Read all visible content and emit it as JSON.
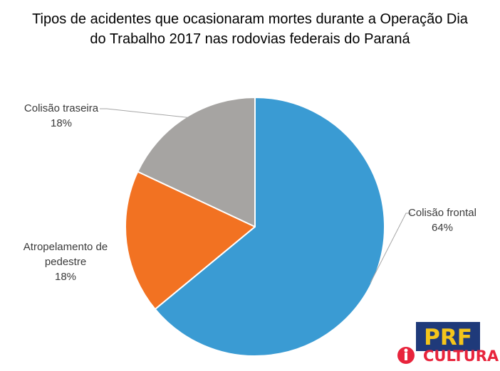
{
  "chart_data": {
    "type": "pie",
    "title_lines": [
      "Tipos de acidentes que ocasionaram mortes durante a Operação Dia",
      "do Trabalho 2017 nas rodovias federais do Paraná"
    ],
    "slices": [
      {
        "label_lines": [
          "Colisão frontal"
        ],
        "value": 64,
        "value_label": "64%",
        "color": "#3a9bd3"
      },
      {
        "label_lines": [
          "Atropelamento de",
          "pedestre"
        ],
        "value": 18,
        "value_label": "18%",
        "color": "#f27222"
      },
      {
        "label_lines": [
          "Colisão traseira"
        ],
        "value": 18,
        "value_label": "18%",
        "color": "#a6a4a2"
      }
    ]
  },
  "logo": {
    "prf": "PRF",
    "cultura": "CULTURA",
    "colors": {
      "navy": "#1f3a7a",
      "yellow": "#f4c51b",
      "red": "#e8243c"
    }
  }
}
